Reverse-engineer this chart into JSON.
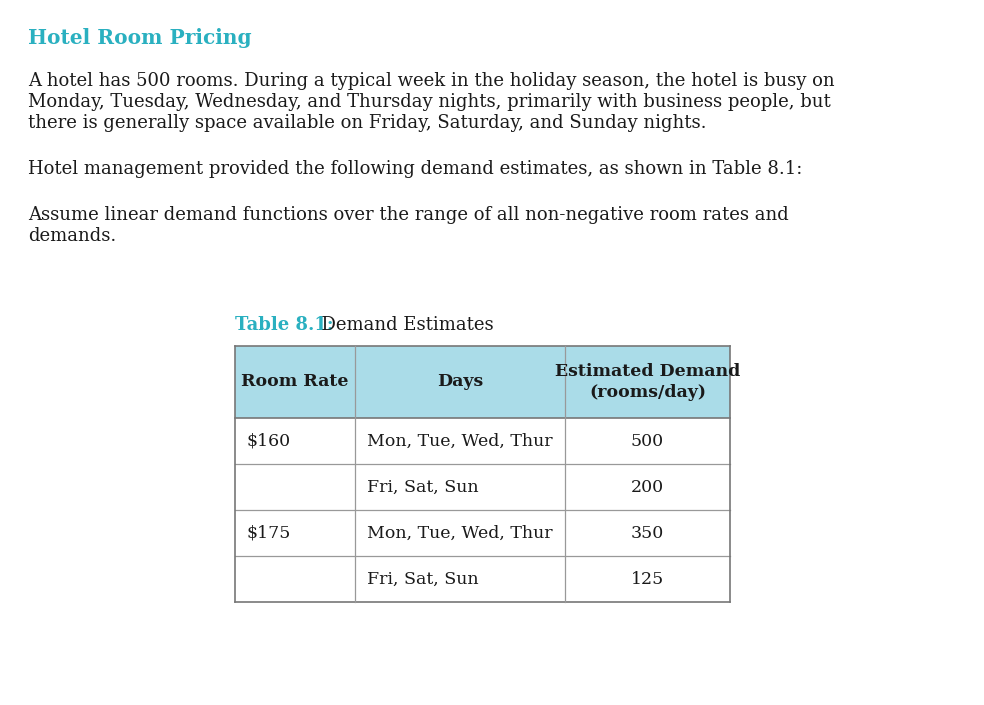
{
  "title": "Hotel Room Pricing",
  "title_color": "#2ab0c0",
  "background_color": "#ffffff",
  "body_text_color": "#1a1a1a",
  "paragraph1_line1": "A hotel has 500 rooms. During a typical week in the holiday season, the hotel is busy on",
  "paragraph1_line2": "Monday, Tuesday, Wednesday, and Thursday nights, primarily with business people, but",
  "paragraph1_line3": "there is generally space available on Friday, Saturday, and Sunday nights.",
  "paragraph2": "Hotel management provided the following demand estimates, as shown in Table 8.1:",
  "paragraph3_line1": "Assume linear demand functions over the range of all non-negative room rates and",
  "paragraph3_line2": "demands.",
  "table_label_bold": "Table 8.1:",
  "table_label_normal": "  Demand Estimates",
  "table_label_color": "#2ab0c0",
  "table_label_normal_color": "#1a1a1a",
  "header_bg": "#aadce8",
  "header_col1": "Room Rate",
  "header_col2": "Days",
  "header_col3": "Estimated Demand\n(rooms/day)",
  "rows": [
    [
      "$160",
      "Mon, Tue, Wed, Thur",
      "500"
    ],
    [
      "",
      "Fri, Sat, Sun",
      "200"
    ],
    [
      "$175",
      "Mon, Tue, Wed, Thur",
      "350"
    ],
    [
      "",
      "Fri, Sat, Sun",
      "125"
    ]
  ],
  "font_size_body": 13.0,
  "font_size_title": 14.5,
  "font_size_table": 12.5,
  "font_size_table_label": 13.0
}
